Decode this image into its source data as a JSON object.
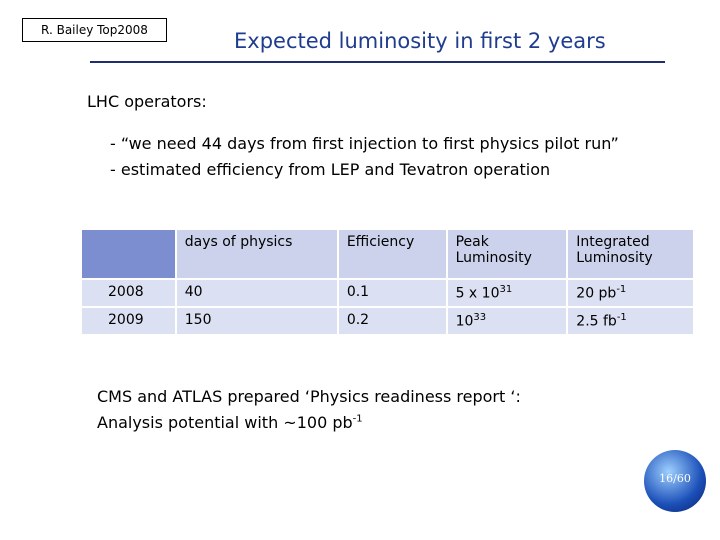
{
  "header": {
    "tag": "R. Bailey Top2008",
    "title": "Expected luminosity in first 2 years"
  },
  "intro": "LHC operators:",
  "bullets": [
    "- “we need 44 days from first injection to first physics pilot run”",
    "- estimated efficiency from LEP and Tevatron operation"
  ],
  "table": {
    "header": [
      "days of physics",
      "Efficiency",
      "Peak Luminosity",
      "Integrated Luminosity"
    ],
    "rows": [
      {
        "year": "2008",
        "days": "40",
        "efficiency": "0.1",
        "peak": {
          "base": "5 x 10",
          "sup": "31"
        },
        "integrated": {
          "base": "20 pb",
          "sup": "-1"
        }
      },
      {
        "year": "2009",
        "days": "150",
        "efficiency": "0.2",
        "peak": {
          "base": "10",
          "sup": "33"
        },
        "integrated": {
          "base": "2.5 fb",
          "sup": "-1"
        }
      }
    ]
  },
  "note": {
    "line1": "CMS and ATLAS prepared ‘Physics readiness report ‘:",
    "line2": {
      "base": "Analysis potential with ~100 pb",
      "sup": "-1"
    }
  },
  "page": "16/60"
}
